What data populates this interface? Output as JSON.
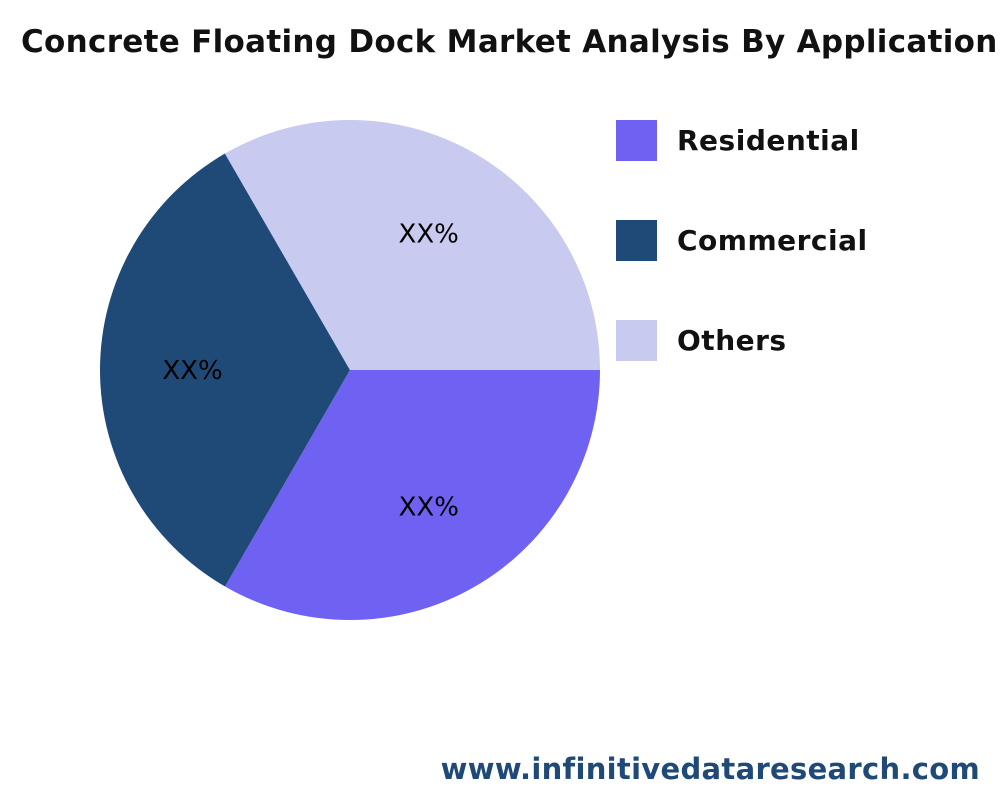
{
  "chart_data": {
    "type": "pie",
    "title": "Concrete Floating Dock Market Analysis By Application",
    "categories": [
      "Residential",
      "Commercial",
      "Others"
    ],
    "values": [
      33.33,
      33.33,
      33.34
    ],
    "data_labels": [
      "XX%",
      "XX%",
      "XX%"
    ],
    "colors": [
      "#6f62f2",
      "#1f4a78",
      "#c8caf0"
    ],
    "legend_position": "right"
  },
  "watermark": "www.infinitivedataresearch.com"
}
